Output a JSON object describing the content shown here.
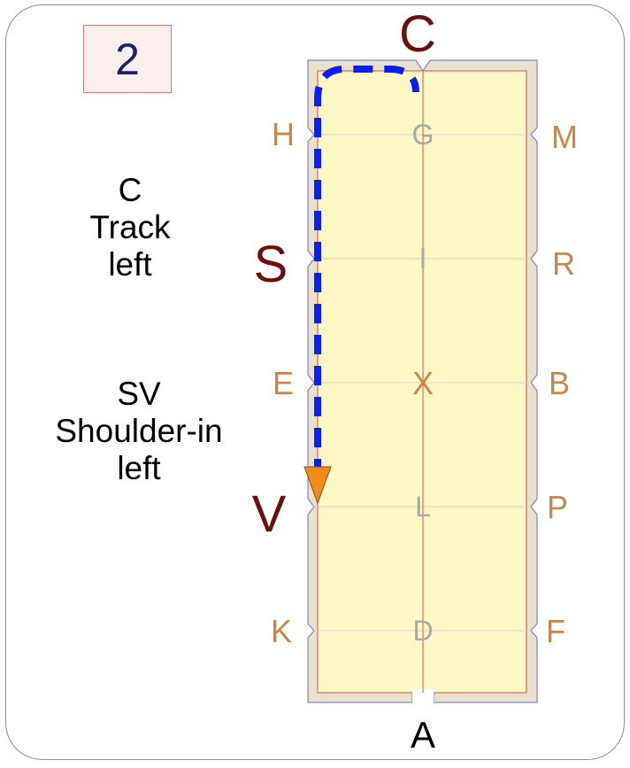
{
  "step_number": "2",
  "instructions": [
    {
      "lines": [
        "C",
        "Track",
        "left"
      ]
    },
    {
      "lines": [
        "SV",
        "Shoulder-in",
        "left"
      ]
    }
  ],
  "arena": {
    "letters": {
      "top": "C",
      "bottom": "A",
      "left": [
        "H",
        "S",
        "E",
        "V",
        "K"
      ],
      "right": [
        "M",
        "R",
        "B",
        "P",
        "F"
      ],
      "centerline": [
        "G",
        "I",
        "X",
        "L",
        "D"
      ]
    },
    "colors": {
      "sand": "#fdf8c4",
      "fence": "#e9e1cc",
      "letter_orange": "#c8864a",
      "letter_gray": "#a8a8a8",
      "letter_maroon": "#6b1010",
      "path_blue": "#0a1ef0",
      "arrow_orange": "#f08a1a"
    }
  }
}
